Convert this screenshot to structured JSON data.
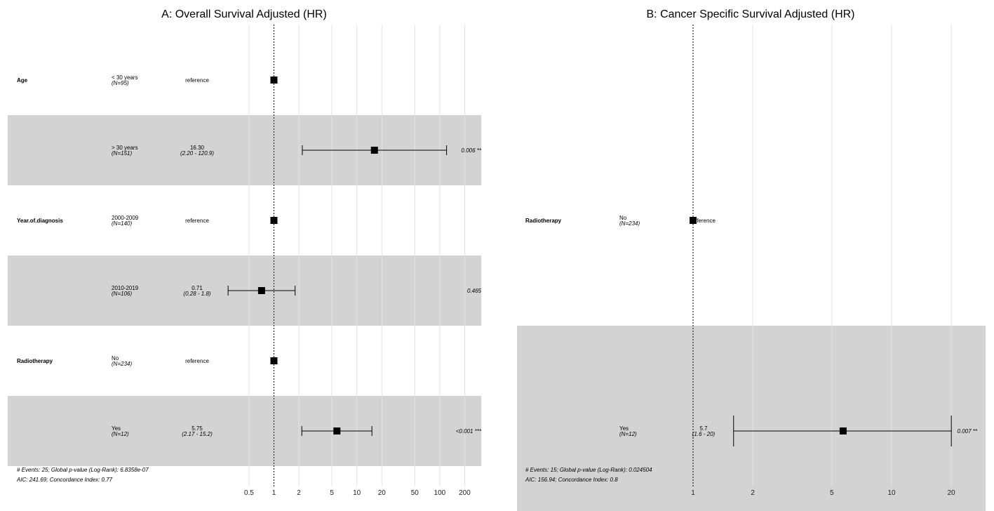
{
  "chart_data": [
    {
      "type": "forest",
      "title": "A: Overall Survival Adjusted (HR)",
      "x_scale": "log",
      "x_ticks": [
        0.5,
        1,
        2,
        5,
        10,
        20,
        50,
        100,
        200
      ],
      "x_tick_labels": [
        "0.5",
        "1",
        "2",
        "5",
        "10",
        "20",
        "50",
        "100",
        "200"
      ],
      "reference_line": 1,
      "rows": [
        {
          "variable": "Age",
          "level": "< 30 years",
          "n": "(N=95)",
          "hr_label": "reference",
          "ci_label": "",
          "p_label": "",
          "hr": 1,
          "lower": null,
          "upper": null
        },
        {
          "variable": "",
          "level": "> 30 years",
          "n": "(N=151)",
          "hr_label": "16.30",
          "ci_label": "(2.20 - 120.9)",
          "p_label": "0.006 **",
          "hr": 16.3,
          "lower": 2.2,
          "upper": 120.9
        },
        {
          "variable": "Year.of.diagnosis",
          "level": "2000-2009",
          "n": "(N=140)",
          "hr_label": "reference",
          "ci_label": "",
          "p_label": "",
          "hr": 1,
          "lower": null,
          "upper": null
        },
        {
          "variable": "",
          "level": "2010-2019",
          "n": "(N=106)",
          "hr_label": "0.71",
          "ci_label": "(0.28 -   1.8)",
          "p_label": "0.465",
          "hr": 0.71,
          "lower": 0.28,
          "upper": 1.8
        },
        {
          "variable": "Radiotherapy",
          "level": "No",
          "n": "(N=234)",
          "hr_label": "reference",
          "ci_label": "",
          "p_label": "",
          "hr": 1,
          "lower": null,
          "upper": null
        },
        {
          "variable": "",
          "level": "Yes",
          "n": "(N=12)",
          "hr_label": "5.75",
          "ci_label": "(2.17 -  15.2)",
          "p_label": "<0.001 ***",
          "hr": 5.75,
          "lower": 2.17,
          "upper": 15.2
        }
      ],
      "footnote_1": "# Events: 25; Global p-value (Log-Rank): 6.8358e-07",
      "footnote_2": "AIC: 241.69; Concordance Index: 0.77"
    },
    {
      "type": "forest",
      "title": "B: Cancer Specific Survival Adjusted (HR)",
      "x_scale": "log",
      "x_ticks": [
        1,
        2,
        5,
        10,
        20
      ],
      "x_tick_labels": [
        "1",
        "2",
        "5",
        "10",
        "20"
      ],
      "reference_line": 1,
      "rows": [
        {
          "variable": "Radiotherapy",
          "level": "No",
          "n": "(N=234)",
          "hr_label": "reference",
          "ci_label": "",
          "p_label": "",
          "hr": 1,
          "lower": null,
          "upper": null
        },
        {
          "variable": "",
          "level": "Yes",
          "n": "(N=12)",
          "hr_label": "5.7",
          "ci_label": "(1.6 - 20)",
          "p_label": "0.007 **",
          "hr": 5.7,
          "lower": 1.6,
          "upper": 20
        }
      ],
      "footnote_1": "# Events: 15; Global p-value (Log-Rank): 0.024504",
      "footnote_2": "AIC: 156.94; Concordance Index: 0.8"
    }
  ]
}
